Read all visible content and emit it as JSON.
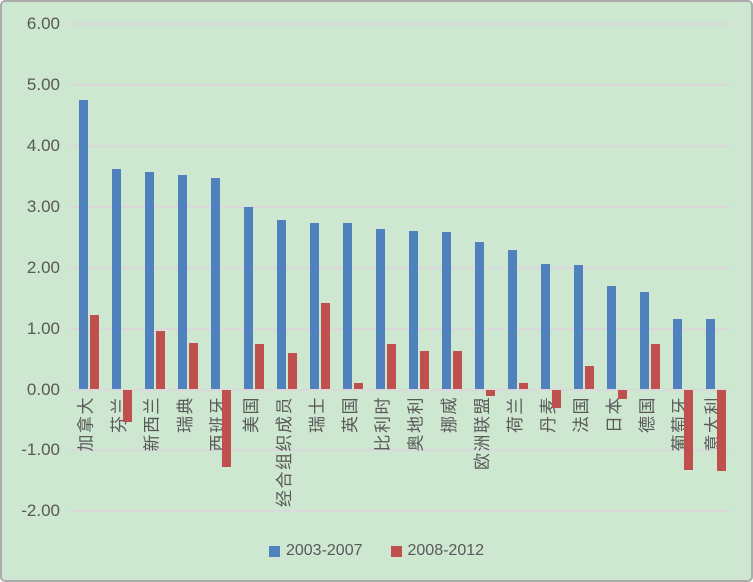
{
  "chart_data": {
    "type": "bar",
    "title": "",
    "categories": [
      "加拿大",
      "芬兰",
      "新西兰",
      "瑞典",
      "西班牙",
      "美国",
      "经合组织成员",
      "瑞士",
      "英国",
      "比利时",
      "奥地利",
      "挪威",
      "欧洲联盟",
      "荷兰",
      "丹麦",
      "法国",
      "日本",
      "德国",
      "葡萄牙",
      "意大利"
    ],
    "series": [
      {
        "name": "2003-2007",
        "color": "#4F81BD",
        "values": [
          4.76,
          3.62,
          3.57,
          3.52,
          3.48,
          2.99,
          2.78,
          2.73,
          2.73,
          2.63,
          2.61,
          2.58,
          2.42,
          2.29,
          2.06,
          2.05,
          1.7,
          1.6,
          1.16,
          1.15
        ]
      },
      {
        "name": "2008-2012",
        "color": "#C0504D",
        "values": [
          1.22,
          -0.53,
          0.96,
          0.76,
          -1.27,
          0.74,
          0.6,
          1.42,
          0.1,
          0.74,
          0.63,
          0.63,
          -0.1,
          0.1,
          -0.31,
          0.38,
          -0.15,
          0.75,
          -1.33,
          -1.34
        ]
      }
    ],
    "y_axis": {
      "min": -2,
      "max": 6,
      "step": 1,
      "tick_labels": [
        "6.00",
        "5.00",
        "4.00",
        "3.00",
        "2.00",
        "1.00",
        "0.00",
        "-1.00",
        "-2.00"
      ]
    },
    "xlabel": "",
    "ylabel": "",
    "grid": true,
    "legend_position": "bottom",
    "background_color": "#CDE7D0",
    "gridline_color": "#DBD8DC",
    "text_color": "#595959",
    "border_color": "#ABABAB"
  }
}
